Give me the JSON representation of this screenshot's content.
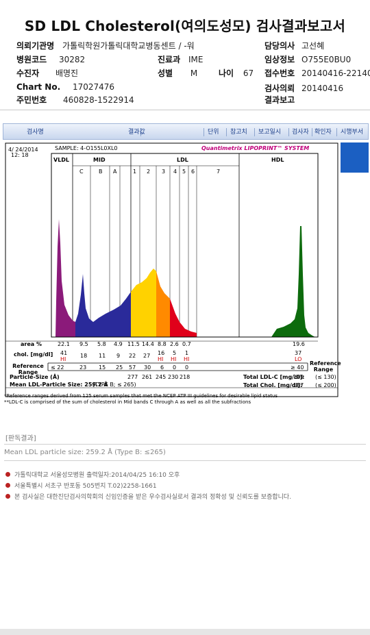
{
  "title": "SD LDL Cholesterol(여의도성모) 검사결과보고서",
  "patient_info": {
    "institution_label": "의뢰기관명",
    "institution_value": "가톨릭학원가톨릭대학교",
    "ward_label": "병동센트 / -워",
    "doctor_label": "담당의사",
    "doctor_value": "고선혜",
    "hospital_code_label": "병원코드",
    "hospital_code_value": "30282",
    "dept_label": "진료과",
    "dept_value": "IME",
    "clinical_label": "임상정보",
    "clinical_value": "O755E0BU0",
    "examinee_label": "수진자",
    "examinee_value": "배명진",
    "sex_label": "성별",
    "sex_value": "M",
    "age_label": "나이",
    "age_value": "67",
    "receipt_label": "접수번호",
    "receipt_value": "20140416-22140",
    "chart_label": "Chart No.",
    "chart_value": "17027476",
    "request_label": "검사의뢰",
    "request_value": "20140416",
    "rrn_label": "주민번호",
    "rrn_value": "460828-1522914",
    "report_label": "결과보고"
  },
  "tabs": [
    "검사명",
    "결과값",
    "단위",
    "참고치",
    "보고일시",
    "검사자",
    "확인자",
    "시행부서"
  ],
  "report": {
    "date": "4/ 24/2014",
    "time": "12: 18",
    "sample": "SAMPLE:   4-O155L0XL0",
    "brand": "Quantimetrix LIPOPRINT™ SYSTEM",
    "zones": [
      "VLDL",
      "MID",
      "LDL",
      "HDL"
    ],
    "bands": [
      "C",
      "B",
      "A",
      "1",
      "2",
      "3",
      "4",
      "5",
      "6",
      "7"
    ],
    "area_label": "area %",
    "area_values": [
      "22.1",
      "9.5",
      "5.8",
      "4.9",
      "11.5",
      "14.4",
      "8.8",
      "2.6",
      "0.7",
      "19.6"
    ],
    "chol_label": "chol. [mg/dl]",
    "chol_values": [
      "41",
      "18",
      "11",
      "9",
      "22",
      "27",
      "16",
      "5",
      "1",
      "37"
    ],
    "flags": [
      "HI",
      "HI",
      "HI",
      "HI",
      "LO"
    ],
    "ref_label": "Reference Range",
    "ref_values": [
      "≤ 22",
      "23",
      "15",
      "25",
      "57",
      "30",
      "6",
      "0",
      "0",
      "≥ 40"
    ],
    "ref_range_header": "Reference Range",
    "particle_label": "Particle-Size (Å)",
    "particle_values": [
      "277",
      "261",
      "245",
      "230",
      "218"
    ],
    "mean_label": "Mean LDL-Particle Size:  259.2 Å",
    "mean_type": "(TYPE B; ≤ 265)",
    "total_ldl_label": "Total LDL-C [mg/dl]:",
    "total_ldl_value": "109",
    "total_ldl_ref": "(≤ 130)",
    "total_chol_label": "Total Chol. [mg/dl]:",
    "total_chol_value": "187",
    "total_chol_ref": "(≤ 200)",
    "footnote1": "*Reference ranges derived from 125 serum samples that met the NCEP ATP III guidelines for desirable lipid status",
    "footnote2": "**LDL-C is comprised of the sum of cholesterol in Mid bands C through A as well as all the subfractions"
  },
  "verdict": {
    "title": "[판독결과]",
    "text": "Mean LDL particle size: 259.2 Å (Type B: ≤265)"
  },
  "notes": [
    "가톨릭대학교 서울성모병원          출력일자:2014/04/25 16:10 오후",
    "서울특별시 서초구 반포동 505번지 T.02)2258-1661",
    "본 검사실은 대한진단검사의학회의 신임인증을 받은 우수검사실로서 결과의 정확성 및 신뢰도를 보증합니다."
  ],
  "colors": {
    "vldl": "#8b1a7a",
    "mid": "#2a2a9a",
    "ldl_yellow": "#ffd200",
    "ldl_orange": "#ff8a00",
    "ldl_red": "#e0001a",
    "hdl": "#0d6b0d",
    "brand": "#c0007a",
    "accent_blue": "#1b5fc2"
  }
}
